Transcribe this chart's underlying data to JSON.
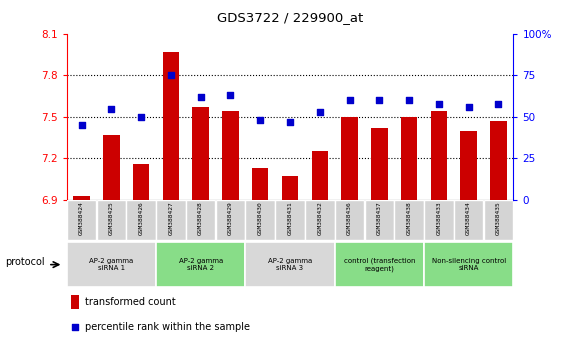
{
  "title": "GDS3722 / 229900_at",
  "categories": [
    "GSM388424",
    "GSM388425",
    "GSM388426",
    "GSM388427",
    "GSM388428",
    "GSM388429",
    "GSM388430",
    "GSM388431",
    "GSM388432",
    "GSM388436",
    "GSM388437",
    "GSM388438",
    "GSM388433",
    "GSM388434",
    "GSM388435"
  ],
  "bar_values": [
    6.93,
    7.37,
    7.16,
    7.97,
    7.57,
    7.54,
    7.13,
    7.07,
    7.25,
    7.5,
    7.42,
    7.5,
    7.54,
    7.4,
    7.47
  ],
  "scatter_values": [
    45,
    55,
    50,
    75,
    62,
    63,
    48,
    47,
    53,
    60,
    60,
    60,
    58,
    56,
    58
  ],
  "ylim_left": [
    6.9,
    8.1
  ],
  "ylim_right": [
    0,
    100
  ],
  "yticks_left": [
    6.9,
    7.2,
    7.5,
    7.8,
    8.1
  ],
  "yticks_right": [
    0,
    25,
    50,
    75,
    100
  ],
  "bar_color": "#cc0000",
  "scatter_color": "#0000cc",
  "bar_bottom": 6.9,
  "hlines": [
    7.2,
    7.5,
    7.8
  ],
  "groups": [
    {
      "label": "AP-2 gamma\nsiRNA 1",
      "start": 0,
      "end": 2,
      "color": "#d8d8d8"
    },
    {
      "label": "AP-2 gamma\nsiRNA 2",
      "start": 3,
      "end": 5,
      "color": "#88dd88"
    },
    {
      "label": "AP-2 gamma\nsiRNA 3",
      "start": 6,
      "end": 8,
      "color": "#d8d8d8"
    },
    {
      "label": "control (transfection\nreagent)",
      "start": 9,
      "end": 11,
      "color": "#88dd88"
    },
    {
      "label": "Non-silencing control\nsiRNA",
      "start": 12,
      "end": 14,
      "color": "#88dd88"
    }
  ],
  "legend_labels": [
    "transformed count",
    "percentile rank within the sample"
  ],
  "protocol_label": "protocol"
}
